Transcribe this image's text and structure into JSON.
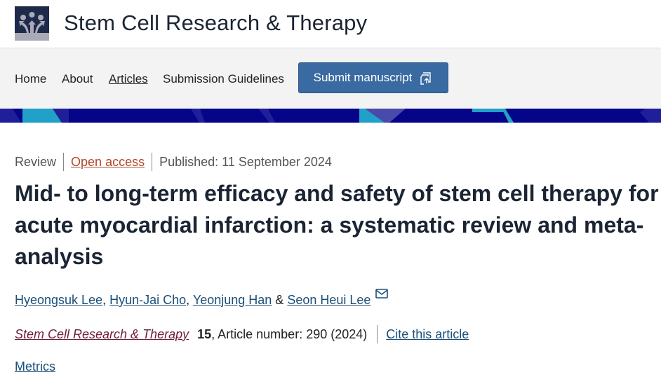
{
  "header": {
    "site_title": "Stem Cell Research & Therapy",
    "logo": "journal-logo"
  },
  "nav": {
    "items": [
      {
        "label": "Home",
        "active": false
      },
      {
        "label": "About",
        "active": false
      },
      {
        "label": "Articles",
        "active": true
      },
      {
        "label": "Submission Guidelines",
        "active": false
      }
    ],
    "submit_label": "Submit manuscript",
    "submit_icon": "submit-upload-icon"
  },
  "colors": {
    "banner": "#05058a",
    "button": "#3a6aa2",
    "open_access": "#b1482a",
    "journal_link": "#6e1d3a",
    "link": "#1a4f7a"
  },
  "article": {
    "type": "Review",
    "access": "Open access",
    "published": "Published: 11 September 2024",
    "title": "Mid- to long-term efficacy and safety of stem cell therapy for acute myocardial infarction: a systematic review and meta-analysis",
    "authors": [
      "Hyeongsuk Lee",
      "Hyun-Jai Cho",
      "Yeonjung Han",
      "Seon Heui Lee"
    ],
    "author_sep": ", ",
    "author_and": " & ",
    "journal": "Stem Cell Research & Therapy",
    "volume": "15",
    "article_number": ", Article number: 290 (2024)",
    "cite_label": "Cite this article",
    "metrics_label": "Metrics"
  }
}
